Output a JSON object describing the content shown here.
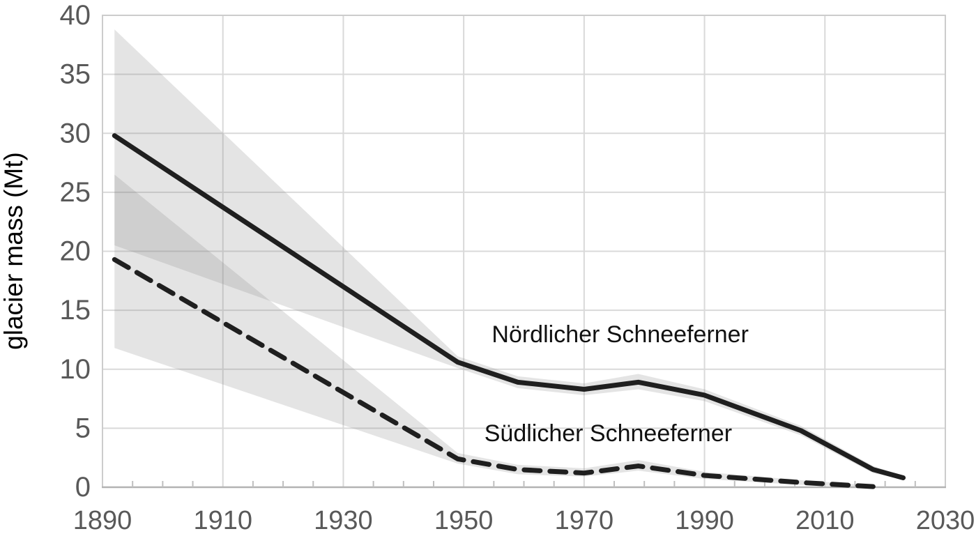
{
  "chart_data": {
    "type": "line",
    "title": "",
    "xlabel": "",
    "ylabel": "glacier mass (Mt)",
    "xlim": [
      1890,
      2030
    ],
    "ylim": [
      0,
      40
    ],
    "x_major_ticks": [
      1890,
      1910,
      1930,
      1950,
      1970,
      1990,
      2010,
      2030
    ],
    "x_minor_tick_step": 5,
    "y_ticks": [
      0,
      5,
      10,
      15,
      20,
      25,
      30,
      35,
      40
    ],
    "grid": true,
    "legend_position": "inline-annotations",
    "series": [
      {
        "name": "Nördlicher Schneeferner",
        "line_style": "solid",
        "x": [
          1892,
          1949,
          1959,
          1970,
          1979,
          1990,
          2006,
          2018,
          2023
        ],
        "y": [
          29.8,
          10.6,
          8.9,
          8.3,
          8.9,
          7.8,
          4.8,
          1.5,
          0.8
        ],
        "band_upper": [
          38.8,
          11.1,
          9.4,
          8.8,
          9.6,
          8.3,
          5.2,
          1.8,
          0.95
        ],
        "band_lower": [
          20.5,
          10.1,
          8.4,
          7.8,
          8.3,
          7.3,
          4.4,
          1.2,
          0.65
        ],
        "label_pos": {
          "x": 1976,
          "y": 12.3
        }
      },
      {
        "name": "Südlicher Schneeferner",
        "line_style": "dashed",
        "x": [
          1892,
          1949,
          1959,
          1970,
          1979,
          1990,
          2006,
          2018
        ],
        "y": [
          19.3,
          2.4,
          1.5,
          1.2,
          1.8,
          1.0,
          0.4,
          0.05
        ],
        "band_upper": [
          26.5,
          2.9,
          1.9,
          1.6,
          2.3,
          1.3,
          0.6,
          0.15
        ],
        "band_lower": [
          11.8,
          2.0,
          1.1,
          0.9,
          1.4,
          0.7,
          0.2,
          0.0
        ],
        "label_pos": {
          "x": 1974,
          "y": 3.9
        }
      }
    ],
    "colors": {
      "line": "#1f1f1f",
      "band": "rgba(132,132,132,0.22)",
      "gridline": "#d9d9d9",
      "border": "#cccccc",
      "axis_line": "#b3b3b3",
      "tick": "#bfbfbf",
      "tick_label": "#595959",
      "series_label": "#111111",
      "axis_title": "#000000"
    }
  }
}
